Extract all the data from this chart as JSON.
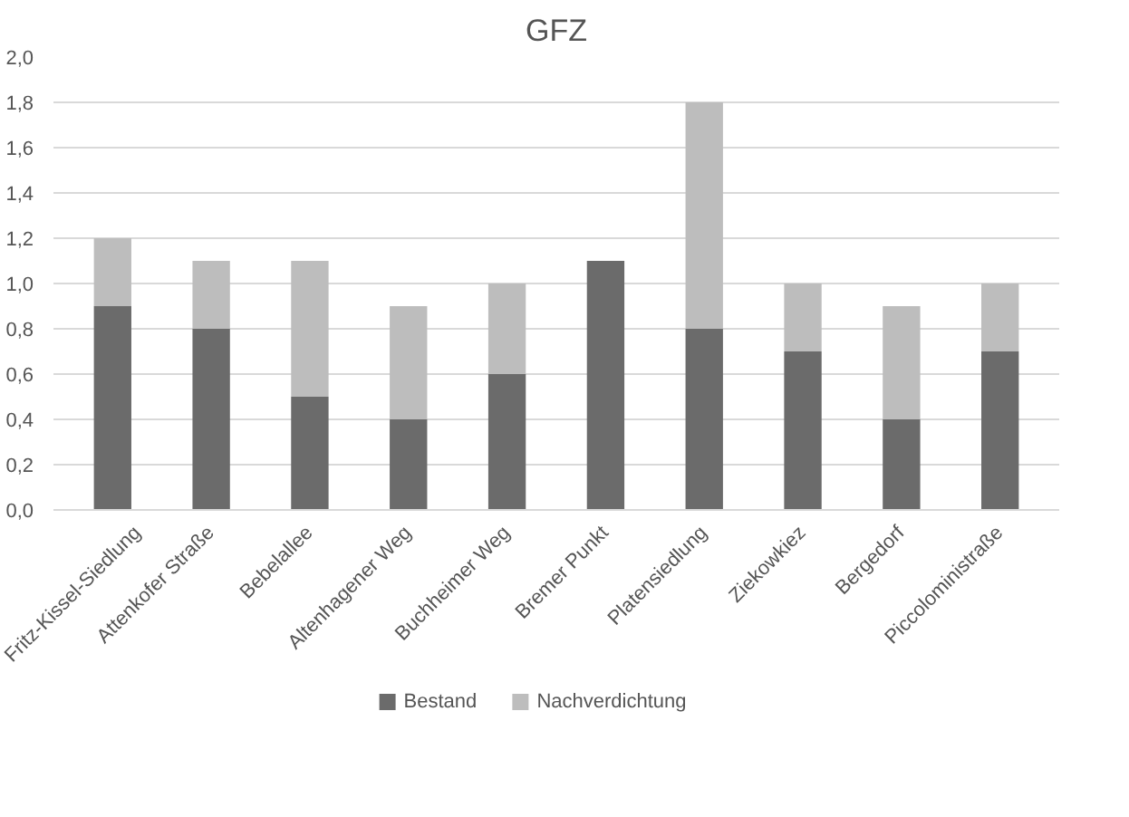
{
  "chart_data": {
    "type": "bar",
    "title": "GFZ",
    "stacked": true,
    "categories": [
      "Fritz-Kissel-Siedlung",
      "Attenkofer Straße",
      "Bebelallee",
      "Altenhagener Weg",
      "Buchheimer Weg",
      "Bremer Punkt",
      "Platensiedlung",
      "Ziekowkiez",
      "Bergedorf",
      "Piccoloministraße"
    ],
    "series": [
      {
        "name": "Bestand",
        "color": "#6b6b6b",
        "values": [
          0.9,
          0.8,
          0.5,
          0.4,
          0.6,
          1.1,
          0.8,
          0.7,
          0.4,
          0.7
        ]
      },
      {
        "name": "Nachverdichtung",
        "color": "#bdbdbd",
        "values": [
          0.3,
          0.3,
          0.6,
          0.5,
          0.4,
          0,
          1.0,
          0.3,
          0.5,
          0.3
        ]
      }
    ],
    "ylim": [
      0,
      2.0
    ],
    "yticks": [
      {
        "value": 0,
        "label": "0,0"
      },
      {
        "value": 0.2,
        "label": "0,2"
      },
      {
        "value": 0.4,
        "label": "0,4"
      },
      {
        "value": 0.6,
        "label": "0,6"
      },
      {
        "value": 0.8,
        "label": "0,8"
      },
      {
        "value": 1.0,
        "label": "1,0"
      },
      {
        "value": 1.2,
        "label": "1,2"
      },
      {
        "value": 1.4,
        "label": "1,4"
      },
      {
        "value": 1.6,
        "label": "1,6"
      },
      {
        "value": 1.8,
        "label": "1,8"
      },
      {
        "value": 2.0,
        "label": "2,0"
      }
    ],
    "grid": "y",
    "legend": "bottom"
  }
}
